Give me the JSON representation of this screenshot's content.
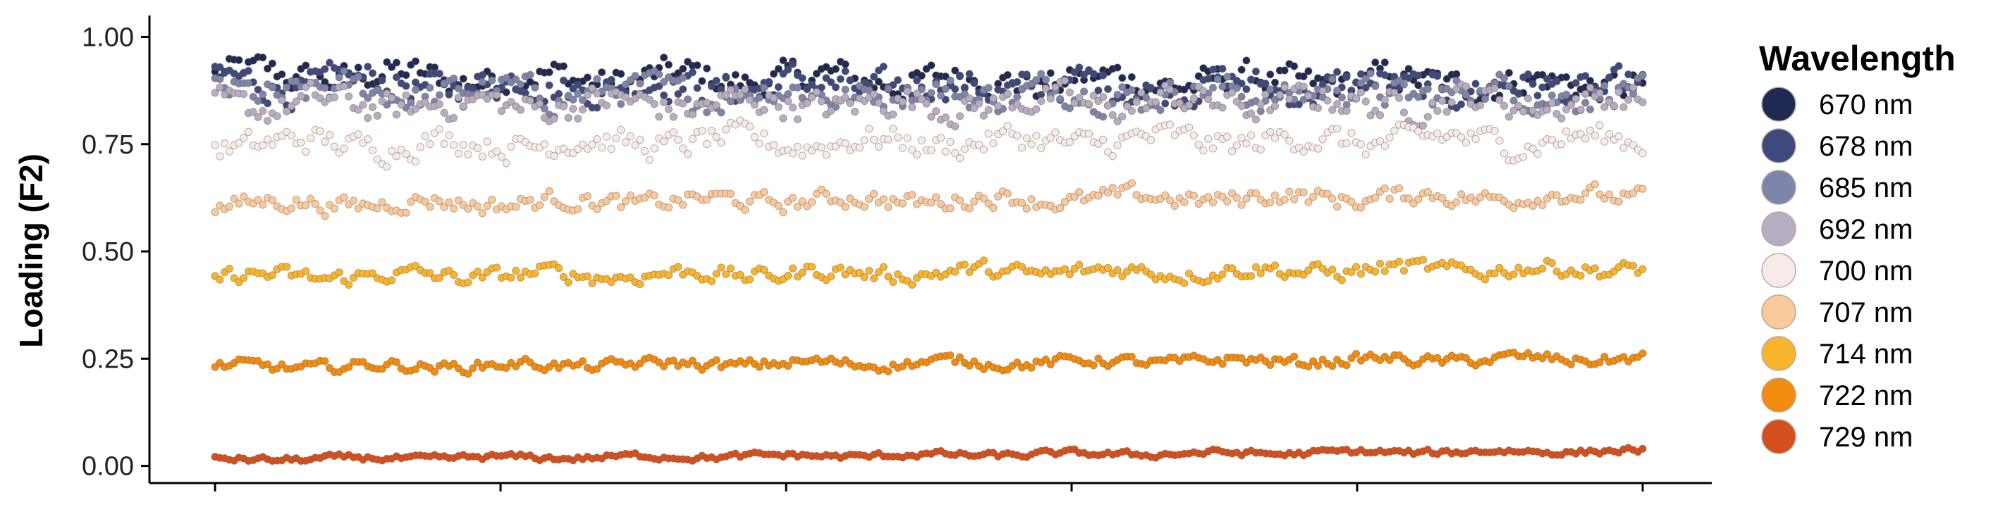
{
  "chart_data": {
    "type": "scatter",
    "ylabel": "Loading (F2)",
    "ylim": [
      -0.04,
      1.05
    ],
    "y_ticks": [
      "0.00",
      "0.25",
      "0.50",
      "0.75",
      "1.00"
    ],
    "x_ticks": 6,
    "grid": false,
    "legend": {
      "title": "Wavelength",
      "position": "right"
    },
    "n_points": 300,
    "series": [
      {
        "name": "670 nm",
        "color": "#1f2a54",
        "start": 0.91,
        "end": 0.89,
        "noise": 0.03
      },
      {
        "name": "678 nm",
        "color": "#3d4a7e",
        "start": 0.89,
        "end": 0.88,
        "noise": 0.032
      },
      {
        "name": "685 nm",
        "color": "#7e85ab",
        "start": 0.87,
        "end": 0.87,
        "noise": 0.03
      },
      {
        "name": "692 nm",
        "color": "#b6adc2",
        "start": 0.84,
        "end": 0.85,
        "noise": 0.03
      },
      {
        "name": "700 nm",
        "color": "#f6ebe8",
        "start": 0.75,
        "end": 0.76,
        "noise": 0.026
      },
      {
        "name": "707 nm",
        "color": "#f9c89b",
        "start": 0.61,
        "end": 0.63,
        "noise": 0.018
      },
      {
        "name": "714 nm",
        "color": "#f9b42d",
        "start": 0.44,
        "end": 0.46,
        "noise": 0.016
      },
      {
        "name": "722 nm",
        "color": "#f28c0f",
        "start": 0.23,
        "end": 0.25,
        "noise": 0.011
      },
      {
        "name": "729 nm",
        "color": "#d4501e",
        "start": 0.015,
        "end": 0.035,
        "noise": 0.006
      }
    ]
  }
}
